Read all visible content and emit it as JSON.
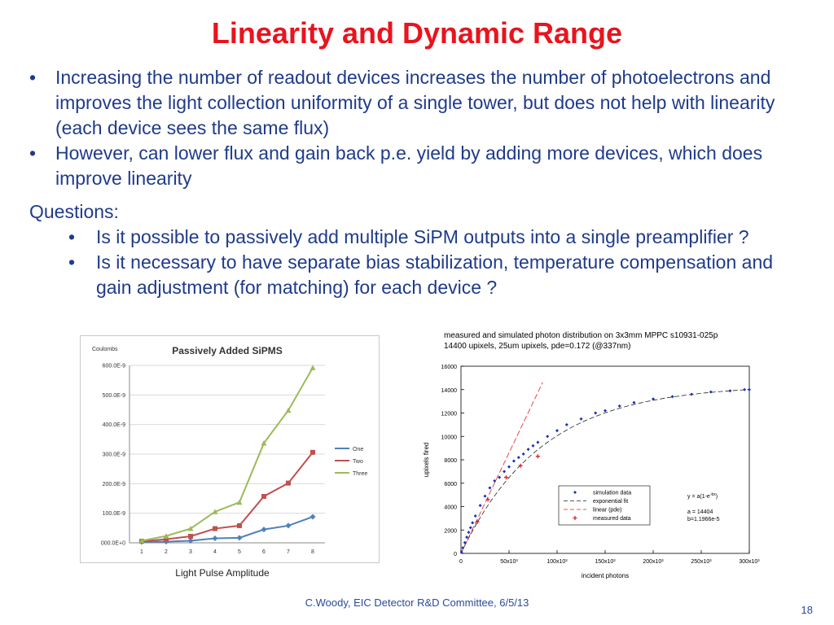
{
  "slide": {
    "title": "Linearity and Dynamic Range",
    "bullets": [
      "Increasing the number of readout devices increases the number of photoelectrons and improves the light collection uniformity of a single tower, but does not help with linearity (each device sees the same flux)",
      "However, can lower flux and gain back p.e. yield by adding more devices, which does improve linearity"
    ],
    "questions_heading": "Questions:",
    "questions": [
      "Is it possible to passively add multiple SiPM outputs into a single preamplifier ?",
      "Is it necessary to have separate bias stabilization, temperature compensation and gain adjustment (for matching) for each device ?"
    ],
    "left_caption": "Light Pulse Amplitude",
    "right_title_line1": "measured and simulated photon distribution on 3x3mm MPPC s10931-025p",
    "right_title_line2": "14400 upixels, 25um upixels,  pde=0.172 (@337nm)",
    "footer": "C.Woody, EIC Detector R&D Committee,  6/5/13",
    "page_number": "18"
  },
  "chart_data": [
    {
      "type": "line",
      "title": "Passively Added SiPMS",
      "ylabel": "Coulombs",
      "xlabel": "",
      "categories": [
        "1",
        "2",
        "3",
        "4",
        "5",
        "6",
        "7",
        "8"
      ],
      "ylim": [
        0,
        6e-07
      ],
      "yticks": [
        {
          "value": 0,
          "label": "000.0E+0"
        },
        {
          "value": 1e-07,
          "label": "100.0E-9"
        },
        {
          "value": 2e-07,
          "label": "200.0E-9"
        },
        {
          "value": 3e-07,
          "label": "300.0E-9"
        },
        {
          "value": 4e-07,
          "label": "400.0E-9"
        },
        {
          "value": 5e-07,
          "label": "500.0E-9"
        },
        {
          "value": 6e-07,
          "label": "600.0E-9"
        }
      ],
      "legend_position": "right",
      "series": [
        {
          "name": "One",
          "color": "#4f81bd",
          "marker": "diamond",
          "values": [
            3e-09,
            4e-09,
            7e-09,
            1.5e-08,
            1.7e-08,
            4.5e-08,
            5.8e-08,
            8.8e-08
          ]
        },
        {
          "name": "Two",
          "color": "#c0504d",
          "marker": "square",
          "values": [
            5e-09,
            1.2e-08,
            2.2e-08,
            4.8e-08,
            5.8e-08,
            1.57e-07,
            2.02e-07,
            3.06e-07
          ]
        },
        {
          "name": "Three",
          "color": "#9bbb59",
          "marker": "triangle",
          "values": [
            7e-09,
            2.3e-08,
            4.8e-08,
            1.05e-07,
            1.37e-07,
            3.37e-07,
            4.48e-07,
            5.92e-07
          ]
        }
      ]
    },
    {
      "type": "scatter",
      "xlabel": "incident photons",
      "ylabel": "upixels fired",
      "xlim": [
        0,
        300000
      ],
      "ylim": [
        0,
        16000
      ],
      "xticks": [
        {
          "value": 0,
          "label": "0"
        },
        {
          "value": 50000,
          "label": "50x10³"
        },
        {
          "value": 100000,
          "label": "100x10³"
        },
        {
          "value": 150000,
          "label": "150x10³"
        },
        {
          "value": 200000,
          "label": "200x10³"
        },
        {
          "value": 250000,
          "label": "250x10³"
        },
        {
          "value": 300000,
          "label": "300x10³"
        }
      ],
      "yticks": [
        0,
        2000,
        4000,
        6000,
        8000,
        10000,
        12000,
        14000,
        16000
      ],
      "legend_position": "bottom-center",
      "series": [
        {
          "name": "simulation data",
          "style": "points",
          "color": "#1a2fbf",
          "x": [
            500,
            2000,
            4000,
            6000,
            8000,
            10000,
            12000,
            15000,
            20000,
            25000,
            30000,
            35000,
            40000,
            45000,
            50000,
            55000,
            60000,
            65000,
            70000,
            75000,
            80000,
            90000,
            100000,
            110000,
            125000,
            140000,
            150000,
            165000,
            180000,
            200000,
            220000,
            240000,
            260000,
            280000,
            295000,
            300000
          ],
          "y": [
            120,
            480,
            920,
            1380,
            1800,
            2200,
            2620,
            3200,
            4100,
            4900,
            5600,
            6200,
            6500,
            7000,
            7400,
            7900,
            8200,
            8500,
            8900,
            9200,
            9500,
            10000,
            10500,
            11000,
            11500,
            12000,
            12200,
            12600,
            12900,
            13200,
            13400,
            13600,
            13800,
            13900,
            14000,
            14000
          ]
        },
        {
          "name": "exponential fit",
          "style": "dashed",
          "color": "#222222"
        },
        {
          "name": "linear (pde)",
          "style": "dashed",
          "color": "#e02020"
        },
        {
          "name": "measured data",
          "style": "points",
          "color": "#e02020",
          "x": [
            17000,
            28000,
            47000,
            62000,
            80000
          ],
          "y": [
            2700,
            4600,
            6500,
            7500,
            8300
          ]
        }
      ],
      "fit_annotation": {
        "formula": "y = a(1-e",
        "formula_sup": "-bx",
        "formula_end": ")",
        "a": "a = 14404",
        "b": "b=1.1966e-5"
      },
      "fit_params": {
        "a": 14404,
        "b": 1.1966e-05,
        "linear_slope": 0.172
      }
    }
  ]
}
